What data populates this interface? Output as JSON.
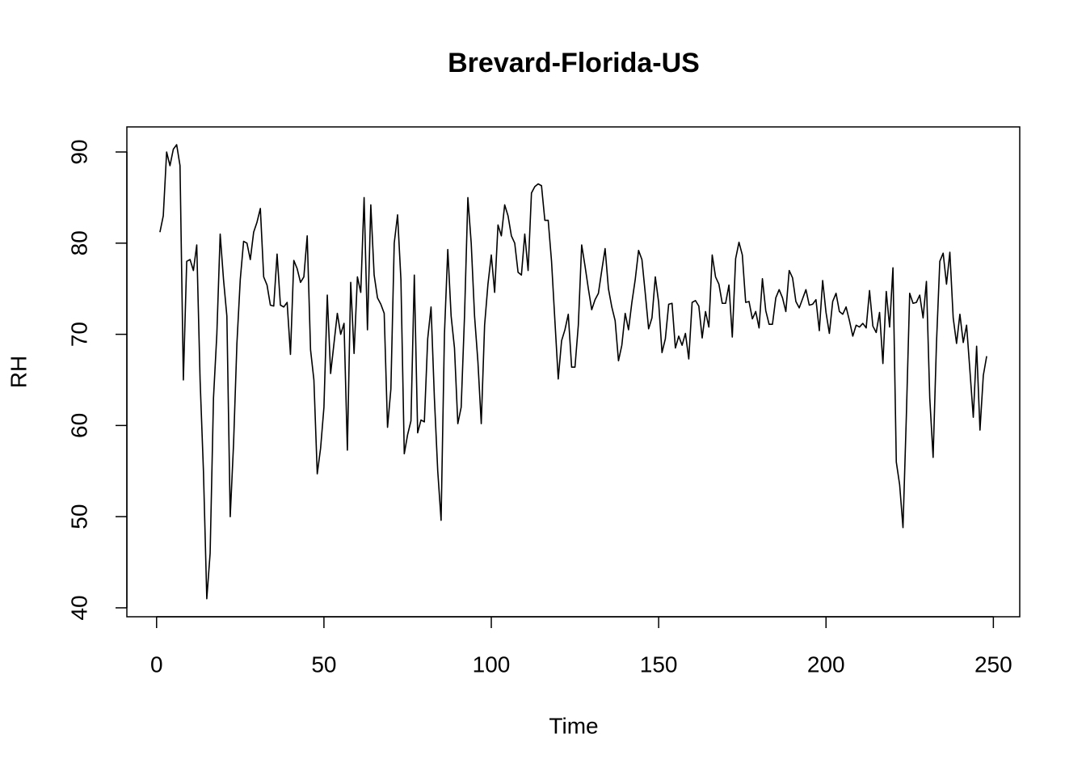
{
  "chart_data": {
    "type": "line",
    "title": "Brevard-Florida-US",
    "x_label": "Time",
    "y_label": "RH",
    "x": [
      1,
      2,
      3,
      4,
      5,
      6,
      7,
      8,
      9,
      10,
      11,
      12,
      13,
      14,
      15,
      16,
      17,
      18,
      19,
      20,
      21,
      22,
      23,
      24,
      25,
      26,
      27,
      28,
      29,
      30,
      31,
      32,
      33,
      34,
      35,
      36,
      37,
      38,
      39,
      40,
      41,
      42,
      43,
      44,
      45,
      46,
      47,
      48,
      49,
      50,
      51,
      52,
      53,
      54,
      55,
      56,
      57,
      58,
      59,
      60,
      61,
      62,
      63,
      64,
      65,
      66,
      67,
      68,
      69,
      70,
      71,
      72,
      73,
      74,
      75,
      76,
      77,
      78,
      79,
      80,
      81,
      82,
      83,
      84,
      85,
      86,
      87,
      88,
      89,
      90,
      91,
      92,
      93,
      94,
      95,
      96,
      97,
      98,
      99,
      100,
      101,
      102,
      103,
      104,
      105,
      106,
      107,
      108,
      109,
      110,
      111,
      112,
      113,
      114,
      115,
      116,
      117,
      118,
      119,
      120,
      121,
      122,
      123,
      124,
      125,
      126,
      127,
      128,
      129,
      130,
      131,
      132,
      133,
      134,
      135,
      136,
      137,
      138,
      139,
      140,
      141,
      142,
      143,
      144,
      145,
      146,
      147,
      148,
      149,
      150,
      151,
      152,
      153,
      154,
      155,
      156,
      157,
      158,
      159,
      160,
      161,
      162,
      163,
      164,
      165,
      166,
      167,
      168,
      169,
      170,
      171,
      172,
      173,
      174,
      175,
      176,
      177,
      178,
      179,
      180,
      181,
      182,
      183,
      184,
      185,
      186,
      187,
      188,
      189,
      190,
      191,
      192,
      193,
      194,
      195,
      196,
      197,
      198,
      199,
      200,
      201,
      202,
      203,
      204,
      205,
      206,
      207,
      208,
      209,
      210,
      211,
      212,
      213,
      214,
      215,
      216,
      217,
      218,
      219,
      220,
      221,
      222,
      223,
      224,
      225,
      226,
      227,
      228,
      229,
      230,
      231,
      232,
      233,
      234,
      235,
      236,
      237,
      238,
      239,
      240,
      241,
      242,
      243,
      244,
      245,
      246,
      247,
      248
    ],
    "values": [
      81.2,
      83,
      90,
      88.5,
      90.3,
      90.8,
      88.5,
      65,
      78,
      78.2,
      77,
      79.8,
      65,
      55,
      41,
      46,
      63,
      70,
      81,
      76,
      72,
      50,
      58,
      69,
      76,
      80.2,
      80,
      78.2,
      81.2,
      82.3,
      83.8,
      76.3,
      75.4,
      73.2,
      73.1,
      78.8,
      73.2,
      73,
      73.5,
      67.8,
      78.1,
      77.2,
      75.7,
      76.3,
      80.8,
      68.3,
      65,
      54.7,
      57.5,
      62,
      74.3,
      65.7,
      69,
      72.3,
      70,
      71.2,
      57.3,
      75.7,
      67.9,
      76.3,
      74.6,
      85,
      70.5,
      84.2,
      76.5,
      74,
      73.3,
      72.3,
      59.8,
      64,
      80,
      83.1,
      76,
      56.9,
      59,
      60.5,
      76.5,
      59.2,
      60.6,
      60.4,
      69.5,
      73,
      63,
      55,
      49.6,
      70,
      79.3,
      72,
      68.5,
      60.2,
      62,
      72,
      85,
      80,
      72,
      67,
      60.2,
      71,
      75.5,
      78.7,
      74.6,
      82,
      80.8,
      84.2,
      83,
      80.8,
      80,
      76.8,
      76.5,
      81,
      77,
      85.5,
      86.2,
      86.5,
      86.3,
      82.5,
      82.5,
      78,
      71.5,
      65.1,
      69.3,
      70.5,
      72.2,
      66.4,
      66.4,
      71,
      79.8,
      77.5,
      75,
      72.7,
      73.8,
      74.5,
      77,
      79.4,
      75,
      73,
      71.5,
      67.1,
      68.8,
      72.3,
      70.5,
      73.5,
      76,
      79.2,
      78.2,
      74.5,
      70.6,
      71.8,
      76.3,
      73.5,
      68,
      69.5,
      73.3,
      73.4,
      68.5,
      69.8,
      68.8,
      70.1,
      67.3,
      73.5,
      73.7,
      73.1,
      69.6,
      72.5,
      70.8,
      78.7,
      76.3,
      75.5,
      73.4,
      73.4,
      75.4,
      69.7,
      78.3,
      80.1,
      78.7,
      73.5,
      73.6,
      71.7,
      72.5,
      70.7,
      76.1,
      72.6,
      71.1,
      71.1,
      74,
      74.9,
      74,
      72.5,
      77,
      76.2,
      73.6,
      72.9,
      73.9,
      74.9,
      73.2,
      73.3,
      73.8,
      70.4,
      75.9,
      72.4,
      70.1,
      73.6,
      74.5,
      72.5,
      72.2,
      73,
      71.5,
      69.8,
      71,
      70.8,
      71.2,
      70.7,
      74.8,
      70.9,
      70.2,
      72.4,
      66.8,
      74.7,
      70.8,
      77.3,
      56,
      53.5,
      48.8,
      61,
      74.5,
      73.4,
      73.5,
      74.3,
      71.8,
      75.8,
      63,
      56.5,
      69,
      78,
      78.9,
      75.5,
      79,
      71.8,
      69,
      72.2,
      69.1,
      71,
      66,
      60.9,
      68.7,
      59.5,
      65.5,
      67.6
    ],
    "color": "#000000",
    "xlim": [
      -8.88,
      257.88
    ],
    "xticks": [
      0,
      50,
      100,
      150,
      200,
      250
    ],
    "ylim": [
      39.02,
      92.75
    ],
    "yticks": [
      40,
      50,
      60,
      70,
      80,
      90
    ]
  }
}
